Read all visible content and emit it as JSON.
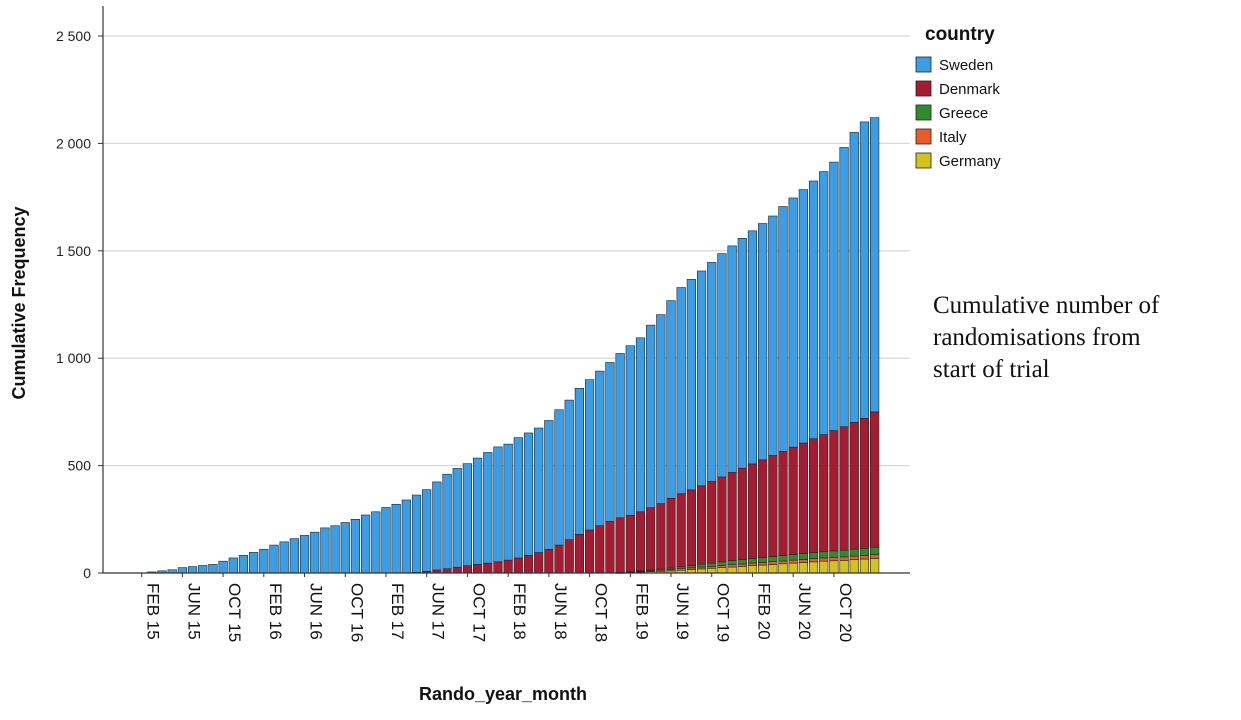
{
  "chart_data": {
    "type": "bar",
    "stacked": true,
    "cumulative": true,
    "xlabel": "Rando_year_month",
    "ylabel": "Cumulative Frequency",
    "ylim": [
      0,
      2500
    ],
    "yticks": [
      0,
      500,
      1000,
      1500,
      2000,
      2500
    ],
    "ytick_labels": [
      "0",
      "500",
      "1 000",
      "1 500",
      "2 000",
      "2 500"
    ],
    "grid": true,
    "legend": {
      "title": "country",
      "position": "top-right"
    },
    "categories": [
      "DEC 14",
      "JAN 15",
      "FEB 15",
      "MAR 15",
      "APR 15",
      "MAY 15",
      "JUN 15",
      "JUL 15",
      "AUG 15",
      "SEP 15",
      "OCT 15",
      "NOV 15",
      "DEC 15",
      "JAN 16",
      "FEB 16",
      "MAR 16",
      "APR 16",
      "MAY 16",
      "JUN 16",
      "JUL 16",
      "AUG 16",
      "SEP 16",
      "OCT 16",
      "NOV 16",
      "DEC 16",
      "JAN 17",
      "FEB 17",
      "MAR 17",
      "APR 17",
      "MAY 17",
      "JUN 17",
      "JUL 17",
      "AUG 17",
      "SEP 17",
      "OCT 17",
      "NOV 17",
      "DEC 17",
      "JAN 18",
      "FEB 18",
      "MAR 18",
      "APR 18",
      "MAY 18",
      "JUN 18",
      "JUL 18",
      "AUG 18",
      "SEP 18",
      "OCT 18",
      "NOV 18",
      "DEC 18",
      "JAN 19",
      "FEB 19",
      "MAR 19",
      "APR 19",
      "MAY 19",
      "JUN 19",
      "JUL 19",
      "AUG 19",
      "SEP 19",
      "OCT 19",
      "NOV 19",
      "DEC 19",
      "JAN 20",
      "FEB 20",
      "MAR 20",
      "APR 20",
      "MAY 20",
      "JUN 20",
      "JUL 20",
      "AUG 20",
      "SEP 20",
      "OCT 20",
      "NOV 20",
      "DEC 20",
      "JAN 21",
      "FEB 21"
    ],
    "xtick_labels": [
      "FEB 15",
      "JUN 15",
      "OCT 15",
      "FEB 16",
      "JUN 16",
      "OCT 16",
      "FEB 17",
      "JUN 17",
      "OCT 17",
      "FEB 18",
      "JUN 18",
      "OCT 18",
      "FEB 19",
      "JUN 19",
      "OCT 19",
      "FEB 20",
      "JUN 20",
      "OCT 20"
    ],
    "series": [
      {
        "name": "Germany",
        "color": "#d4c21f",
        "values": [
          0,
          0,
          0,
          0,
          0,
          0,
          0,
          0,
          0,
          0,
          0,
          0,
          0,
          0,
          0,
          0,
          0,
          0,
          0,
          0,
          0,
          0,
          0,
          0,
          0,
          0,
          0,
          0,
          0,
          0,
          0,
          0,
          0,
          0,
          0,
          0,
          0,
          0,
          0,
          0,
          0,
          0,
          0,
          0,
          0,
          0,
          0,
          0,
          0,
          1,
          2,
          4,
          6,
          8,
          10,
          13,
          16,
          19,
          22,
          25,
          28,
          31,
          34,
          37,
          40,
          43,
          46,
          49,
          52,
          55,
          57,
          59,
          62,
          65,
          68
        ]
      },
      {
        "name": "Italy",
        "color": "#ea5a2a",
        "values": [
          0,
          0,
          0,
          0,
          0,
          0,
          0,
          0,
          0,
          0,
          0,
          0,
          0,
          0,
          0,
          0,
          0,
          0,
          0,
          0,
          0,
          0,
          0,
          0,
          0,
          0,
          0,
          0,
          0,
          0,
          0,
          0,
          0,
          0,
          0,
          0,
          0,
          0,
          0,
          0,
          0,
          0,
          0,
          0,
          0,
          0,
          0,
          0,
          0,
          1,
          2,
          3,
          4,
          5,
          6,
          7,
          8,
          9,
          9,
          10,
          11,
          11,
          12,
          12,
          13,
          13,
          14,
          14,
          15,
          15,
          16,
          16,
          17,
          17,
          18
        ]
      },
      {
        "name": "Greece",
        "color": "#2e8b2e",
        "values": [
          0,
          0,
          0,
          0,
          0,
          0,
          0,
          0,
          0,
          0,
          0,
          0,
          0,
          0,
          0,
          0,
          0,
          0,
          0,
          0,
          0,
          0,
          0,
          0,
          0,
          0,
          0,
          0,
          0,
          0,
          0,
          0,
          0,
          0,
          0,
          0,
          0,
          0,
          0,
          0,
          0,
          0,
          0,
          0,
          0,
          0,
          0,
          0,
          0,
          1,
          2,
          3,
          4,
          5,
          7,
          9,
          11,
          13,
          15,
          17,
          19,
          21,
          22,
          23,
          24,
          25,
          26,
          27,
          28,
          29,
          30,
          31,
          32,
          33,
          34
        ]
      },
      {
        "name": "Denmark",
        "color": "#a51c30",
        "values": [
          0,
          0,
          0,
          0,
          0,
          0,
          0,
          0,
          0,
          0,
          0,
          0,
          0,
          0,
          0,
          0,
          0,
          0,
          0,
          0,
          0,
          0,
          0,
          0,
          0,
          0,
          0,
          0,
          0,
          3,
          8,
          14,
          20,
          27,
          34,
          40,
          46,
          52,
          60,
          70,
          82,
          95,
          110,
          130,
          155,
          180,
          200,
          220,
          240,
          254,
          262,
          275,
          290,
          305,
          325,
          340,
          352,
          365,
          380,
          395,
          410,
          425,
          440,
          455,
          470,
          485,
          500,
          515,
          530,
          545,
          560,
          575,
          590,
          605,
          630
        ]
      },
      {
        "name": "Sweden",
        "color": "#3b9ee4",
        "values": [
          0,
          0,
          0,
          5,
          10,
          15,
          25,
          30,
          35,
          40,
          55,
          70,
          82,
          96,
          110,
          130,
          145,
          160,
          175,
          190,
          210,
          220,
          235,
          250,
          270,
          285,
          305,
          320,
          340,
          360,
          380,
          410,
          440,
          460,
          475,
          495,
          515,
          535,
          540,
          560,
          570,
          580,
          600,
          630,
          650,
          680,
          700,
          720,
          740,
          765,
          790,
          810,
          850,
          880,
          920,
          960,
          980,
          1000,
          1020,
          1040,
          1055,
          1070,
          1085,
          1100,
          1115,
          1140,
          1160,
          1180,
          1200,
          1225,
          1250,
          1300,
          1350,
          1380,
          1370
        ]
      }
    ],
    "annotation": [
      "Cumulative number of",
      "randomisations from",
      "start of trial"
    ]
  }
}
